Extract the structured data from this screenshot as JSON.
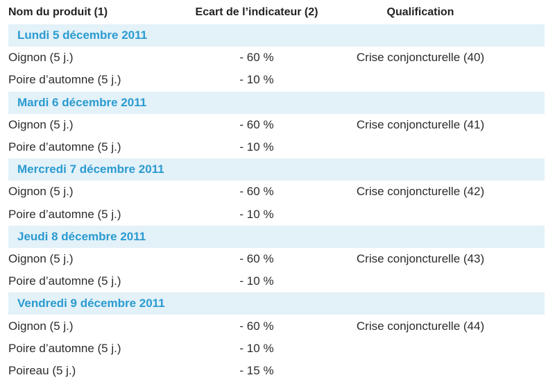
{
  "header": {
    "columns": [
      "Nom du produit (1)",
      "Ecart de l’indicateur (2)",
      "Qualification"
    ]
  },
  "sections": [
    {
      "title": "Lundi 5 décembre 2011",
      "rows": [
        {
          "product": "Oignon (5 j.)",
          "gap": "- 60 %",
          "qualification": "Crise conjoncturelle (40)"
        },
        {
          "product": "Poire d’automne (5 j.)",
          "gap": "- 10 %"
        }
      ]
    },
    {
      "title": "Mardi 6 décembre 2011",
      "rows": [
        {
          "product": "Oignon (5 j.)",
          "gap": "- 60 %",
          "qualification": "Crise conjoncturelle (41)"
        },
        {
          "product": "Poire d’automne (5 j.)",
          "gap": "- 10 %"
        }
      ]
    },
    {
      "title": "Mercredi 7 décembre 2011",
      "rows": [
        {
          "product": "Oignon (5 j.)",
          "gap": "- 60 %",
          "qualification": "Crise conjoncturelle (42)"
        },
        {
          "product": "Poire d’automne (5 j.)",
          "gap": "- 10 %"
        }
      ]
    },
    {
      "title": "Jeudi 8 décembre 2011",
      "rows": [
        {
          "product": "Oignon (5 j.)",
          "gap": "- 60 %",
          "qualification": "Crise conjoncturelle (43)"
        },
        {
          "product": "Poire d’automne (5 j.)",
          "gap": "- 10 %"
        }
      ]
    },
    {
      "title": "Vendredi 9 décembre 2011",
      "rows": [
        {
          "product": "Oignon (5 j.)",
          "gap": "- 60 %",
          "qualification": "Crise conjoncturelle (44)"
        },
        {
          "product": "Poire d’automne (5 j.)",
          "gap": "- 10 %"
        },
        {
          "product": "Poireau (5 j.)",
          "gap": "- 15 %"
        }
      ]
    }
  ]
}
